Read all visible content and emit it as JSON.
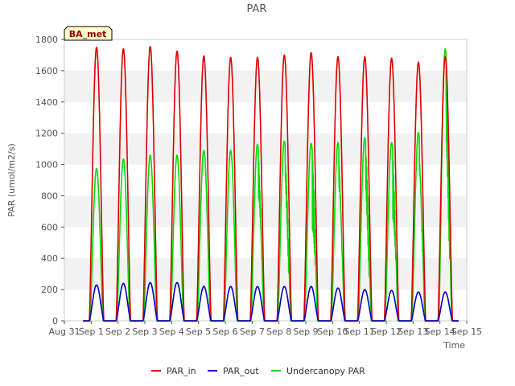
{
  "chart_data": {
    "type": "line",
    "title": "PAR",
    "xlabel": "Time",
    "ylabel": "PAR (umol/m2/s)",
    "ylim": [
      0,
      1800
    ],
    "yticks": [
      0,
      200,
      400,
      600,
      800,
      1000,
      1200,
      1400,
      1600,
      1800
    ],
    "xlim": [
      0,
      15
    ],
    "xticks": [
      0,
      1,
      2,
      3,
      4,
      5,
      6,
      7,
      8,
      9,
      10,
      11,
      12,
      13,
      14,
      15
    ],
    "xtick_labels": [
      "Aug 31",
      "Sep 1",
      "Sep 2",
      "Sep 3",
      "Sep 4",
      "Sep 5",
      "Sep 6",
      "Sep 7",
      "Sep 8",
      "Sep 9",
      "Sep 10",
      "Sep 11",
      "Sep 12",
      "Sep 13",
      "Sep 14",
      "Sep 15"
    ],
    "annotation": "BA_met",
    "legend_position": "bottom-center",
    "grid": "horizontal alternating bands",
    "day_centers": [
      1.2,
      2.2,
      3.2,
      4.2,
      5.2,
      6.2,
      7.2,
      8.2,
      9.2,
      10.2,
      11.2,
      12.2,
      13.2,
      14.2
    ],
    "series": [
      {
        "name": "PAR_in",
        "color": "#dd0000",
        "daily_peaks": [
          1750,
          1740,
          1755,
          1725,
          1695,
          1685,
          1685,
          1700,
          1715,
          1690,
          1690,
          1680,
          1655,
          1690
        ]
      },
      {
        "name": "PAR_out",
        "color": "#0000cc",
        "daily_peaks": [
          230,
          240,
          245,
          245,
          220,
          220,
          220,
          220,
          220,
          210,
          200,
          195,
          185,
          185
        ]
      },
      {
        "name": "Undercanopy PAR",
        "color": "#00dd00",
        "daily_peaks": [
          975,
          1035,
          1060,
          1060,
          1090,
          1090,
          1130,
          1150,
          1135,
          1140,
          1170,
          1140,
          1205,
          1740
        ]
      }
    ]
  }
}
